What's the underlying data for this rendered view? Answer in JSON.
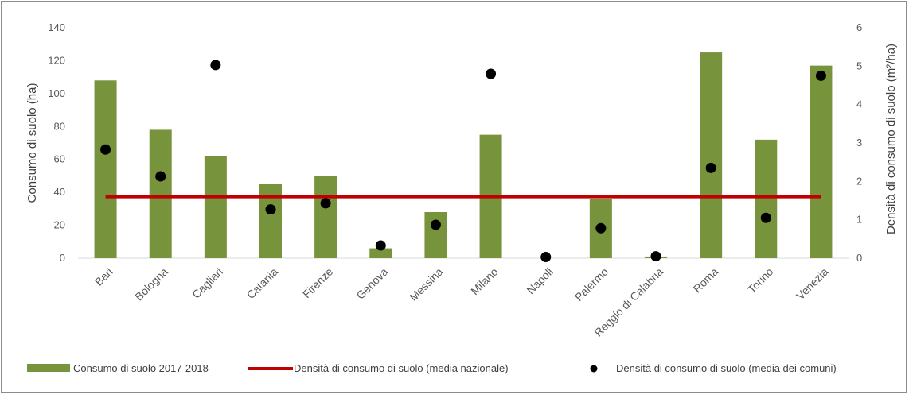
{
  "chart_data": {
    "type": "bar",
    "categories": [
      "Bari",
      "Bologna",
      "Cagliari",
      "Catania",
      "Firenze",
      "Genova",
      "Messina",
      "Milano",
      "Napoli",
      "Palermo",
      "Reggio di Calabria",
      "Roma",
      "Torino",
      "Venezia"
    ],
    "series": [
      {
        "name": "Consumo di suolo 2017-2018",
        "type": "bar",
        "axis": "left",
        "color": "#77933c",
        "values": [
          108,
          78,
          62,
          45,
          50,
          6,
          28,
          75,
          0,
          36,
          1,
          125,
          72,
          117
        ]
      },
      {
        "name": "Densità di consumo di suolo (media nazionale)",
        "type": "line",
        "axis": "right",
        "color": "#c00000",
        "values": [
          1.6,
          1.6,
          1.6,
          1.6,
          1.6,
          1.6,
          1.6,
          1.6,
          1.6,
          1.6,
          1.6,
          1.6,
          1.6,
          1.6
        ]
      },
      {
        "name": "Densità di consumo di suolo (media dei comuni)",
        "type": "scatter",
        "axis": "right",
        "color": "#000000",
        "values": [
          2.83,
          2.13,
          5.03,
          1.27,
          1.43,
          0.33,
          0.87,
          4.8,
          0.03,
          0.78,
          0.05,
          2.35,
          1.05,
          4.75
        ]
      }
    ],
    "ylabel": "Consumo di suolo (ha)",
    "y2label": "Densità di consumo di suolo  (m²/ha)",
    "ylim": [
      0,
      140
    ],
    "y2lim": [
      0,
      6
    ],
    "yticks": [
      0,
      20,
      40,
      60,
      80,
      100,
      120,
      140
    ],
    "y2ticks": [
      0,
      1,
      2,
      3,
      4,
      5,
      6
    ],
    "grid": false,
    "legend": "bottom"
  }
}
